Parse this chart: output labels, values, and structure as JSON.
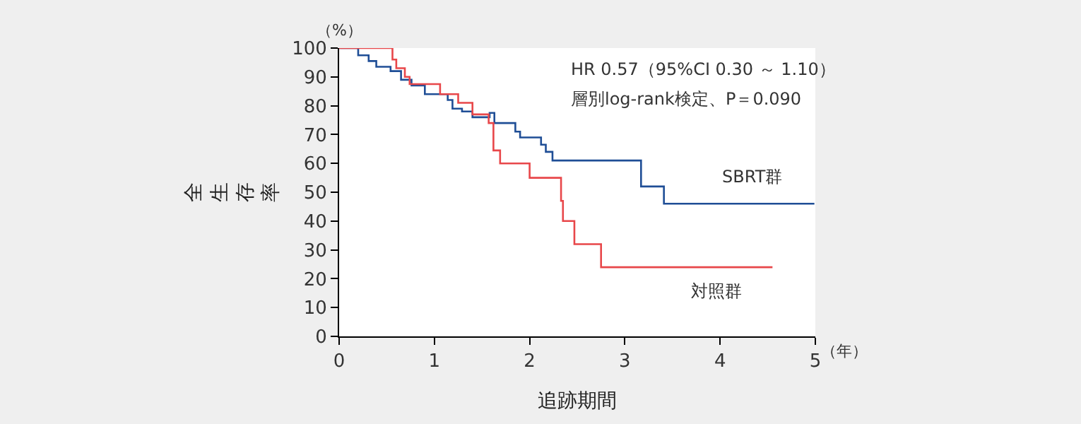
{
  "chart_data": {
    "type": "step",
    "xlabel": "追跡期間",
    "ylabel": "全生存率",
    "annotations": [
      "HR 0.57（95%CI 0.30 ～ 1.10）",
      "層別log-rank検定、P＝0.090",
      "（%）",
      "（年）"
    ],
    "series": [
      {
        "name": "SBRT群",
        "color": "#1f4e96",
        "x": [
          0,
          0.2,
          0.31,
          0.39,
          0.54,
          0.65,
          0.76,
          0.9,
          1.14,
          1.19,
          1.29,
          1.4,
          1.58,
          1.63,
          1.85,
          1.9,
          2.0,
          2.12,
          2.17,
          2.24,
          3.17,
          3.41,
          4.99
        ],
        "values": [
          100,
          97.5,
          95.5,
          93.5,
          92,
          89,
          87,
          84,
          82,
          79,
          78,
          76,
          77.5,
          74,
          71,
          69,
          69,
          66.5,
          64,
          61,
          52,
          46,
          46
        ]
      },
      {
        "name": "対照群",
        "color": "#e8474a",
        "x": [
          0,
          0.56,
          0.6,
          0.69,
          0.74,
          1.06,
          1.25,
          1.4,
          1.57,
          1.62,
          1.69,
          2.0,
          2.33,
          2.35,
          2.47,
          2.75,
          4.55
        ],
        "values": [
          100,
          96,
          93,
          90,
          87.5,
          84,
          81,
          77,
          74,
          64.5,
          60,
          55,
          47,
          40,
          32,
          24,
          24
        ]
      }
    ],
    "xlim": [
      0,
      5
    ],
    "xticks": [
      0,
      1,
      2,
      3,
      4,
      5
    ],
    "ylim": [
      0,
      100
    ],
    "yticks": [
      0,
      10,
      20,
      30,
      40,
      50,
      60,
      70,
      80,
      90,
      100
    ],
    "legend": false,
    "marker": "none",
    "line_style": "solid"
  }
}
